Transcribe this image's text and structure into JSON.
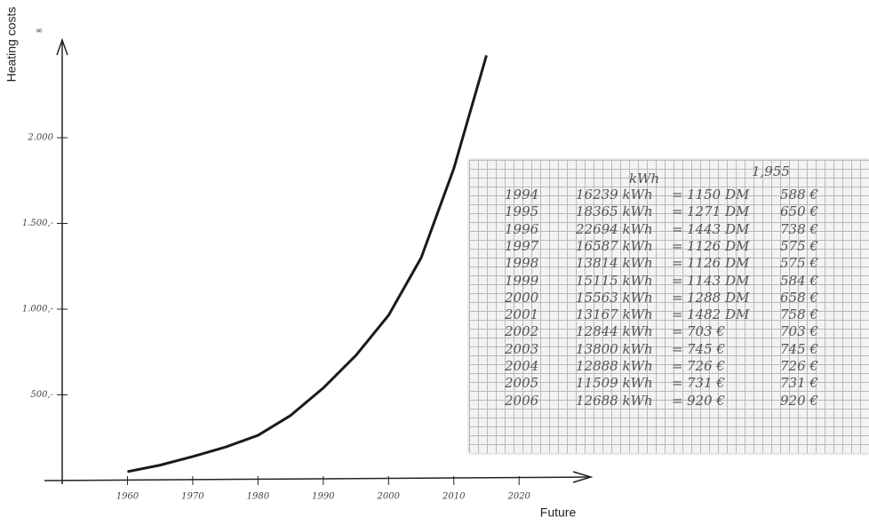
{
  "chart_data": {
    "type": "line",
    "y_label": "Heating costs",
    "x_label": "Future",
    "annotation": "∞",
    "x": [
      1960,
      1965,
      1970,
      1975,
      1980,
      1985,
      1990,
      1995,
      2000,
      2005,
      2010,
      2015
    ],
    "values": [
      52,
      90,
      140,
      195,
      264,
      380,
      540,
      730,
      964,
      1300,
      1820,
      2480
    ],
    "color": "#1a1a1a",
    "xlim": [
      1950,
      2031
    ],
    "xticks": [
      1960,
      1970,
      1980,
      1990,
      2000,
      2010,
      2020
    ],
    "ylim": [
      0,
      2570
    ],
    "yticks": [
      {
        "value": 500,
        "label": "500,-"
      },
      {
        "value": 1000,
        "label": "1.000,-"
      },
      {
        "value": 1500,
        "label": "1.500,-"
      },
      {
        "value": 2000,
        "label": "2.000"
      }
    ]
  },
  "table": {
    "header": [
      "kWh",
      "1,955"
    ],
    "rows": [
      [
        "1994",
        "16239 kWh",
        "=",
        "1150 DM",
        "588 €"
      ],
      [
        "1995",
        "18365 kWh",
        "=",
        "1271 DM",
        "650 €"
      ],
      [
        "1996",
        "22694 kWh",
        "=",
        "1443 DM",
        "738 €"
      ],
      [
        "1997",
        "16587 kWh",
        "=",
        "1126 DM",
        "575 €"
      ],
      [
        "1998",
        "13814 kWh",
        "=",
        "1126 DM",
        "575 €"
      ],
      [
        "1999",
        "15115 kWh",
        "=",
        "1143 DM",
        "584 €"
      ],
      [
        "2000",
        "15563 kWh",
        "=",
        "1288 DM",
        "658 €"
      ],
      [
        "2001",
        "13167 kWh",
        "=",
        "1482 DM",
        "758 €"
      ],
      [
        "2002",
        "12844 kWh",
        "=",
        "703 €",
        "703 €"
      ],
      [
        "2003",
        "13800 kWh",
        "=",
        "745 €",
        "745 €"
      ],
      [
        "2004",
        "12888 kWh",
        "=",
        "726 €",
        "726 €"
      ],
      [
        "2005",
        "11509 kWh",
        "=",
        "731 €",
        "731 €"
      ],
      [
        "2006",
        "12688 kWh",
        "=",
        "920 €",
        "920 €"
      ]
    ]
  }
}
